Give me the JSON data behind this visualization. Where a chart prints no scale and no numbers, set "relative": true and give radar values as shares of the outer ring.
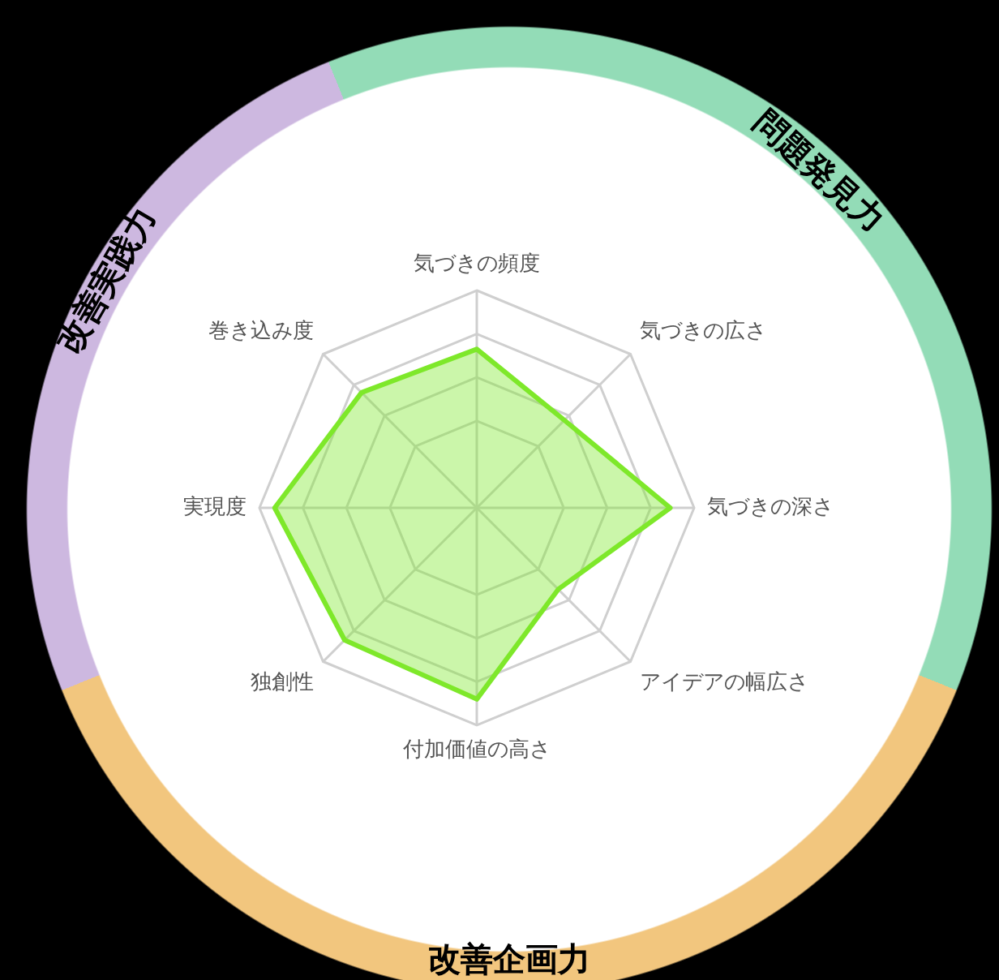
{
  "chart_data": {
    "type": "radar",
    "relative": true,
    "grid": true,
    "legend": false,
    "marker": "none",
    "categories": [
      "気づきの頻度",
      "気づきの広さ",
      "気づきの深さ",
      "アイデアの幅広さ",
      "付加価値の高さ",
      "独創性",
      "実現度",
      "巻き込み度"
    ],
    "series": [
      {
        "color": "#7ee82a",
        "values": [
          0.73,
          0.57,
          0.89,
          0.53,
          0.88,
          0.86,
          0.93,
          0.75
        ]
      }
    ],
    "annotations": [
      "問題発見力",
      "改善企画力",
      "改善実践力"
    ]
  }
}
